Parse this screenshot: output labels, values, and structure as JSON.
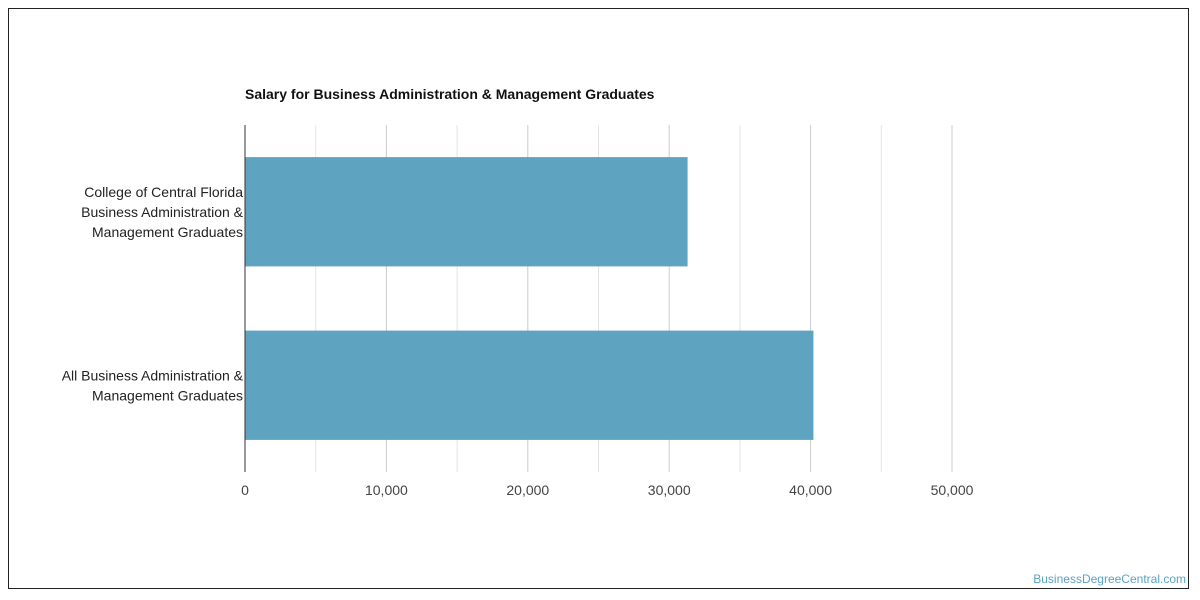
{
  "chart_data": {
    "type": "bar",
    "orientation": "horizontal",
    "title": "Salary for Business Administration & Management Graduates",
    "categories": [
      [
        "College of Central Florida",
        "Business Administration &",
        "Management Graduates"
      ],
      [
        "All Business Administration &",
        "Management Graduates"
      ]
    ],
    "values": [
      31300,
      40200
    ],
    "xlim": [
      0,
      50000
    ],
    "xticks": [
      0,
      10000,
      20000,
      30000,
      40000,
      50000
    ],
    "xtick_labels": [
      "0",
      "10,000",
      "20,000",
      "30,000",
      "40,000",
      "50,000"
    ],
    "minor_gridlines": true,
    "grid": true,
    "legend": "none",
    "bar_color": "#5ea3c0"
  },
  "watermark": "BusinessDegreeCentral.com"
}
